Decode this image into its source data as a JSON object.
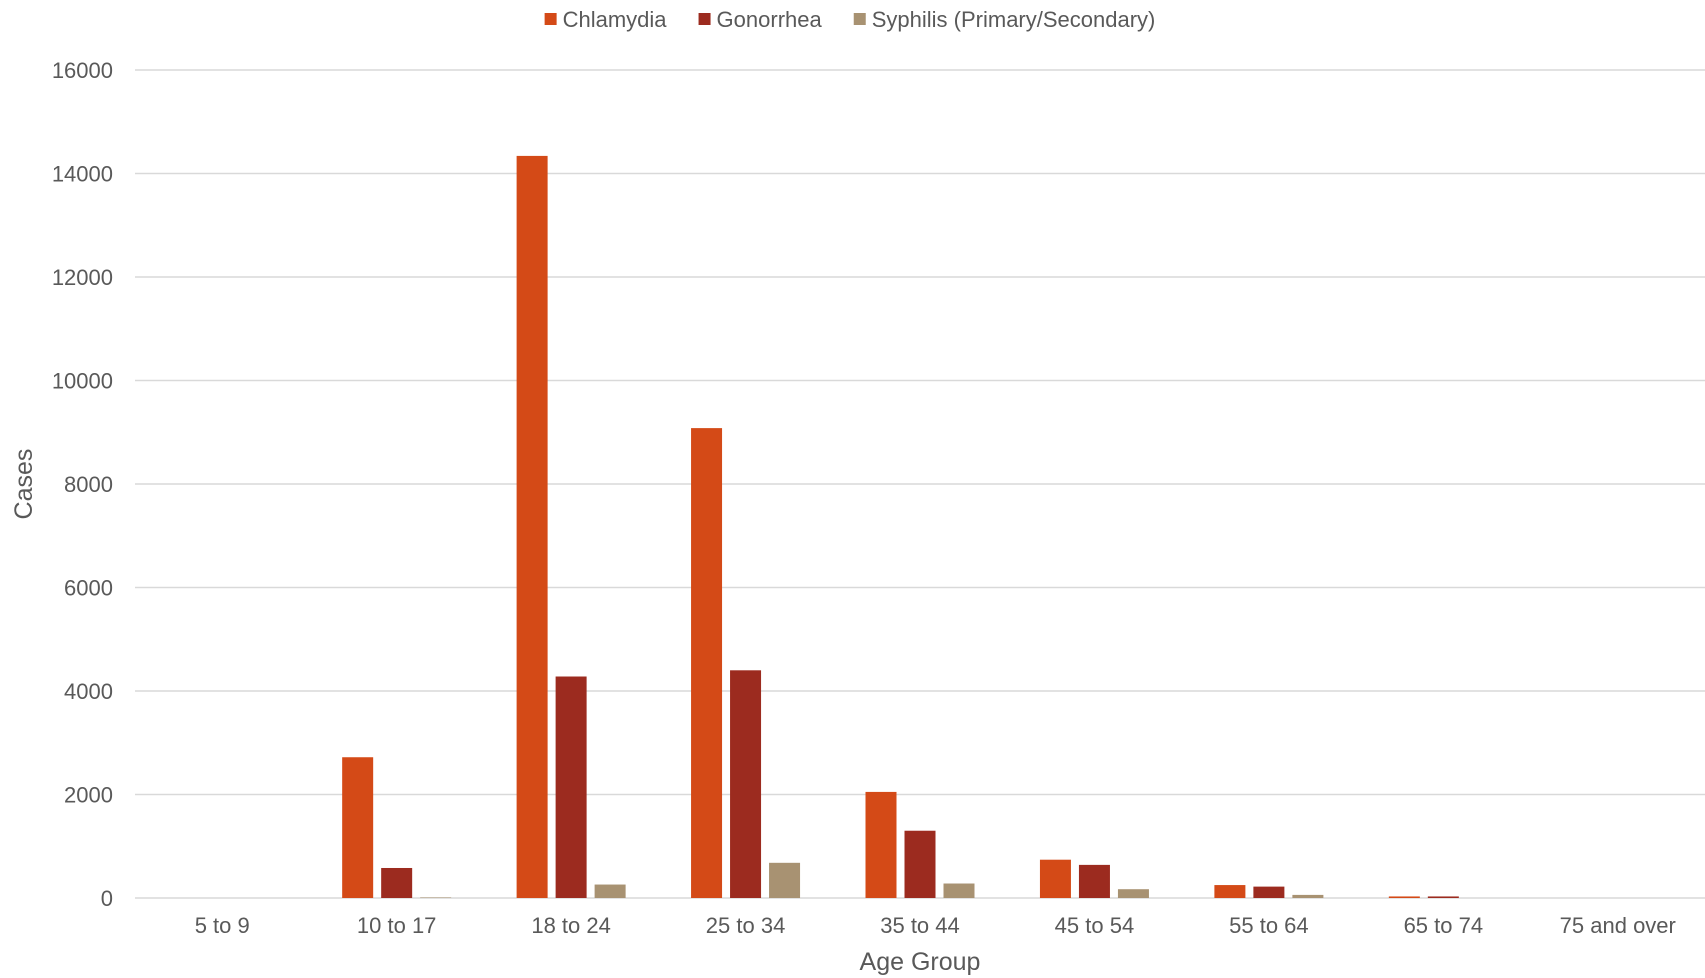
{
  "chart_data": {
    "type": "bar",
    "categories": [
      "5 to 9",
      "10 to 17",
      "18 to 24",
      "25 to 34",
      "35 to 44",
      "45 to 54",
      "55 to 64",
      "65 to 74",
      "75 and over"
    ],
    "series": [
      {
        "name": "Chlamydia",
        "color": "#d44a17",
        "values": [
          0,
          2720,
          14340,
          9080,
          2050,
          740,
          250,
          30,
          0
        ]
      },
      {
        "name": "Gonorrhea",
        "color": "#9c2b1f",
        "values": [
          0,
          580,
          4280,
          4400,
          1300,
          640,
          220,
          30,
          0
        ]
      },
      {
        "name": "Syphilis (Primary/Secondary)",
        "color": "#a89272",
        "values": [
          0,
          10,
          260,
          680,
          280,
          170,
          60,
          0,
          0
        ]
      }
    ],
    "xlabel": "Age Group",
    "ylabel": "Cases",
    "ylim": [
      0,
      16000
    ],
    "yticks": [
      0,
      2000,
      4000,
      6000,
      8000,
      10000,
      12000,
      14000,
      16000
    ],
    "grid": true,
    "legend_position": "top-center"
  }
}
